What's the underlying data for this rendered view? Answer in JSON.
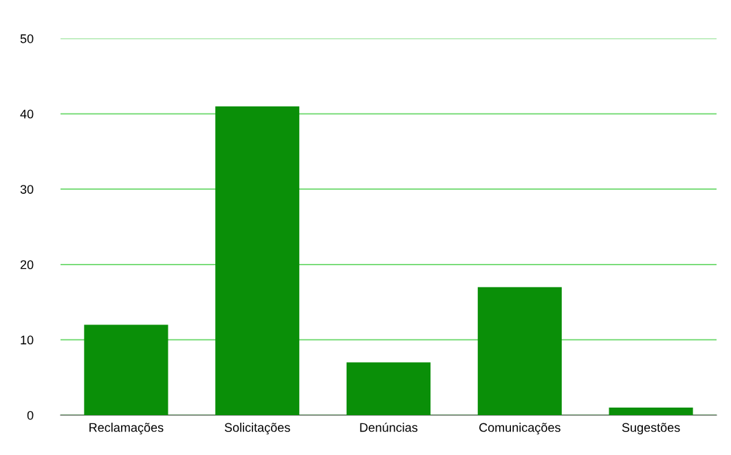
{
  "chart_data": {
    "type": "bar",
    "categories": [
      "Reclamações",
      "Solicitações",
      "Denúncias",
      "Comunicações",
      "Sugestões"
    ],
    "values": [
      12,
      41,
      7,
      17,
      1
    ],
    "color": "#0a8f08",
    "ylim": [
      0,
      50
    ],
    "yticks": [
      0,
      10,
      20,
      30,
      40,
      50
    ],
    "grid": "y"
  }
}
